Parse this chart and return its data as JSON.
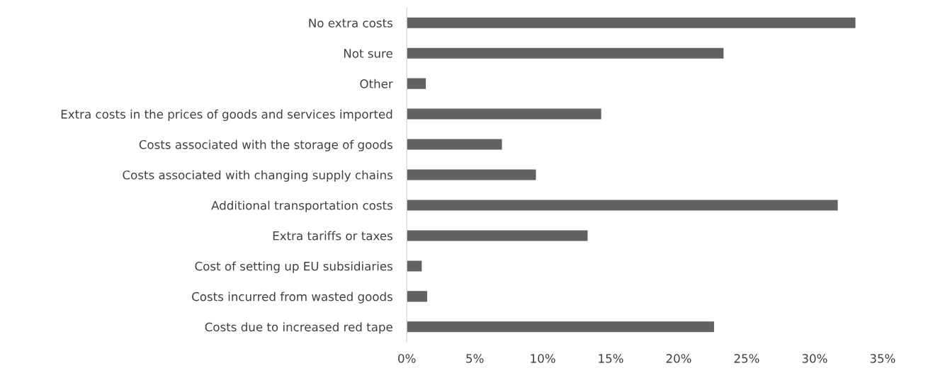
{
  "chart_data": {
    "type": "bar",
    "orientation": "horizontal",
    "categories": [
      "No extra costs",
      "Not sure",
      "Other",
      "Extra costs in the prices of goods and services imported",
      "Costs associated with the storage of goods",
      "Costs associated with changing supply chains",
      "Additional transportation costs",
      "Extra tariffs or taxes",
      "Cost of setting up EU subsidiaries",
      "Costs incurred from wasted goods",
      "Costs due to increased red tape"
    ],
    "values": [
      33.0,
      23.3,
      1.4,
      14.3,
      7.0,
      9.5,
      31.7,
      13.3,
      1.1,
      1.5,
      22.6
    ],
    "color": "#626262",
    "xlim": [
      0,
      35
    ],
    "xticks": [
      {
        "value": 0,
        "label": "0%"
      },
      {
        "value": 5,
        "label": "5%"
      },
      {
        "value": 10,
        "label": "10%"
      },
      {
        "value": 15,
        "label": "15%"
      },
      {
        "value": 20,
        "label": "20%"
      },
      {
        "value": 25,
        "label": "25%"
      },
      {
        "value": 30,
        "label": "30%"
      },
      {
        "value": 35,
        "label": "35%"
      }
    ],
    "grid": false,
    "legend": false
  }
}
